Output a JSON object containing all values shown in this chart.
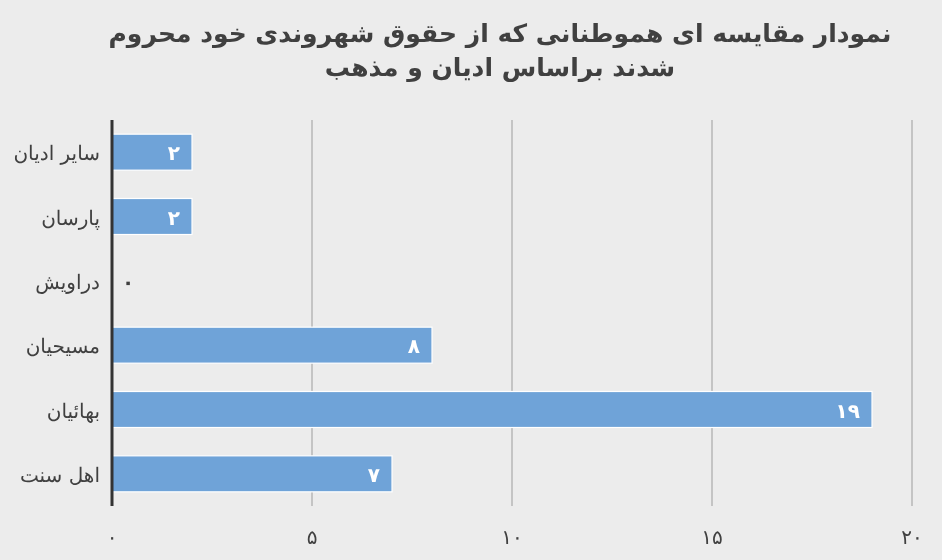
{
  "chart_data": {
    "type": "bar",
    "orientation": "horizontal",
    "title": "نمودار مقایسه ای هموطنانی که از حقوق شهروندی خود محروم  شدند براساس ادیان و مذهب",
    "categories": [
      "سایر ادیان",
      "پارسان",
      "دراویش",
      "مسیحیان",
      "بهائیان",
      "اهل سنت"
    ],
    "values": [
      2,
      2,
      0,
      8,
      19,
      7
    ],
    "value_labels": [
      "۲",
      "۲",
      "۰",
      "۸",
      "۱۹",
      "۷"
    ],
    "color": "#6fa3d8",
    "xlim": [
      0,
      20
    ],
    "xticks": [
      {
        "value": 0,
        "label": "۰"
      },
      {
        "value": 5,
        "label": "۵"
      },
      {
        "value": 10,
        "label": "۱۰"
      },
      {
        "value": 15,
        "label": "۱۵"
      },
      {
        "value": 20,
        "label": "۲۰"
      }
    ],
    "grid": "x"
  }
}
